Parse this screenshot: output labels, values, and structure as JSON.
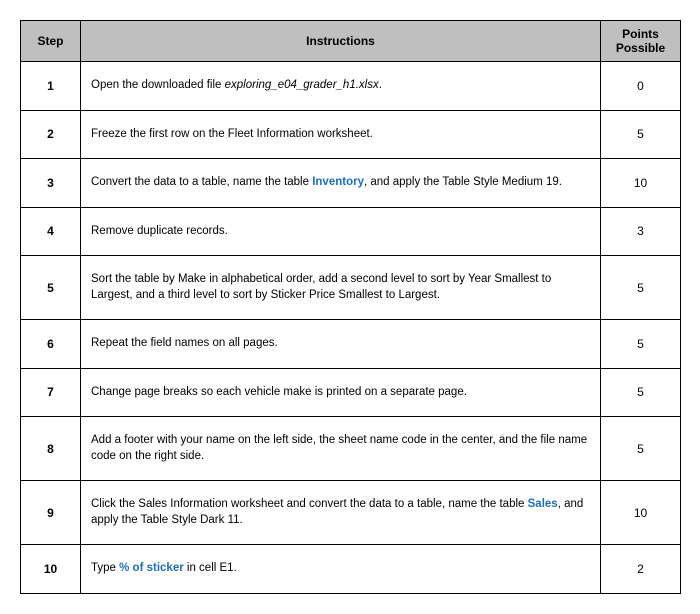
{
  "headers": {
    "step": "Step",
    "instructions": "Instructions",
    "points": "Points Possible"
  },
  "rows": [
    {
      "step": "1",
      "points": "0",
      "segments": [
        {
          "text": "Open the downloaded file "
        },
        {
          "text": "exploring_e04_grader_h1.xlsx",
          "style": "file-italic"
        },
        {
          "text": "."
        }
      ]
    },
    {
      "step": "2",
      "points": "5",
      "segments": [
        {
          "text": "Freeze the first row on the Fleet Information worksheet."
        }
      ]
    },
    {
      "step": "3",
      "points": "10",
      "segments": [
        {
          "text": "Convert the data to a table, name the table "
        },
        {
          "text": "Inventory",
          "style": "blue-bold"
        },
        {
          "text": ", and apply the Table Style Medium 19."
        }
      ]
    },
    {
      "step": "4",
      "points": "3",
      "segments": [
        {
          "text": "Remove duplicate records."
        }
      ]
    },
    {
      "step": "5",
      "points": "5",
      "segments": [
        {
          "text": "Sort the table by Make in alphabetical order, add a second level to sort by Year Smallest to Largest, and a third level to sort by Sticker Price Smallest to Largest."
        }
      ]
    },
    {
      "step": "6",
      "points": "5",
      "segments": [
        {
          "text": "Repeat the field names on all pages."
        }
      ]
    },
    {
      "step": "7",
      "points": "5",
      "segments": [
        {
          "text": "Change page breaks so each vehicle make is printed on a separate page."
        }
      ]
    },
    {
      "step": "8",
      "points": "5",
      "segments": [
        {
          "text": "Add a footer with your name on the left side, the sheet name code in the center, and the file name code on the right side."
        }
      ]
    },
    {
      "step": "9",
      "points": "10",
      "segments": [
        {
          "text": "Click the Sales Information worksheet and convert the data to a table, name the table "
        },
        {
          "text": "Sales",
          "style": "blue-bold"
        },
        {
          "text": ", and apply the Table Style Dark 11."
        }
      ]
    },
    {
      "step": "10",
      "points": "2",
      "segments": [
        {
          "text": "Type "
        },
        {
          "text": "% of sticker",
          "style": "blue-bold"
        },
        {
          "text": " in cell E1."
        }
      ]
    }
  ]
}
